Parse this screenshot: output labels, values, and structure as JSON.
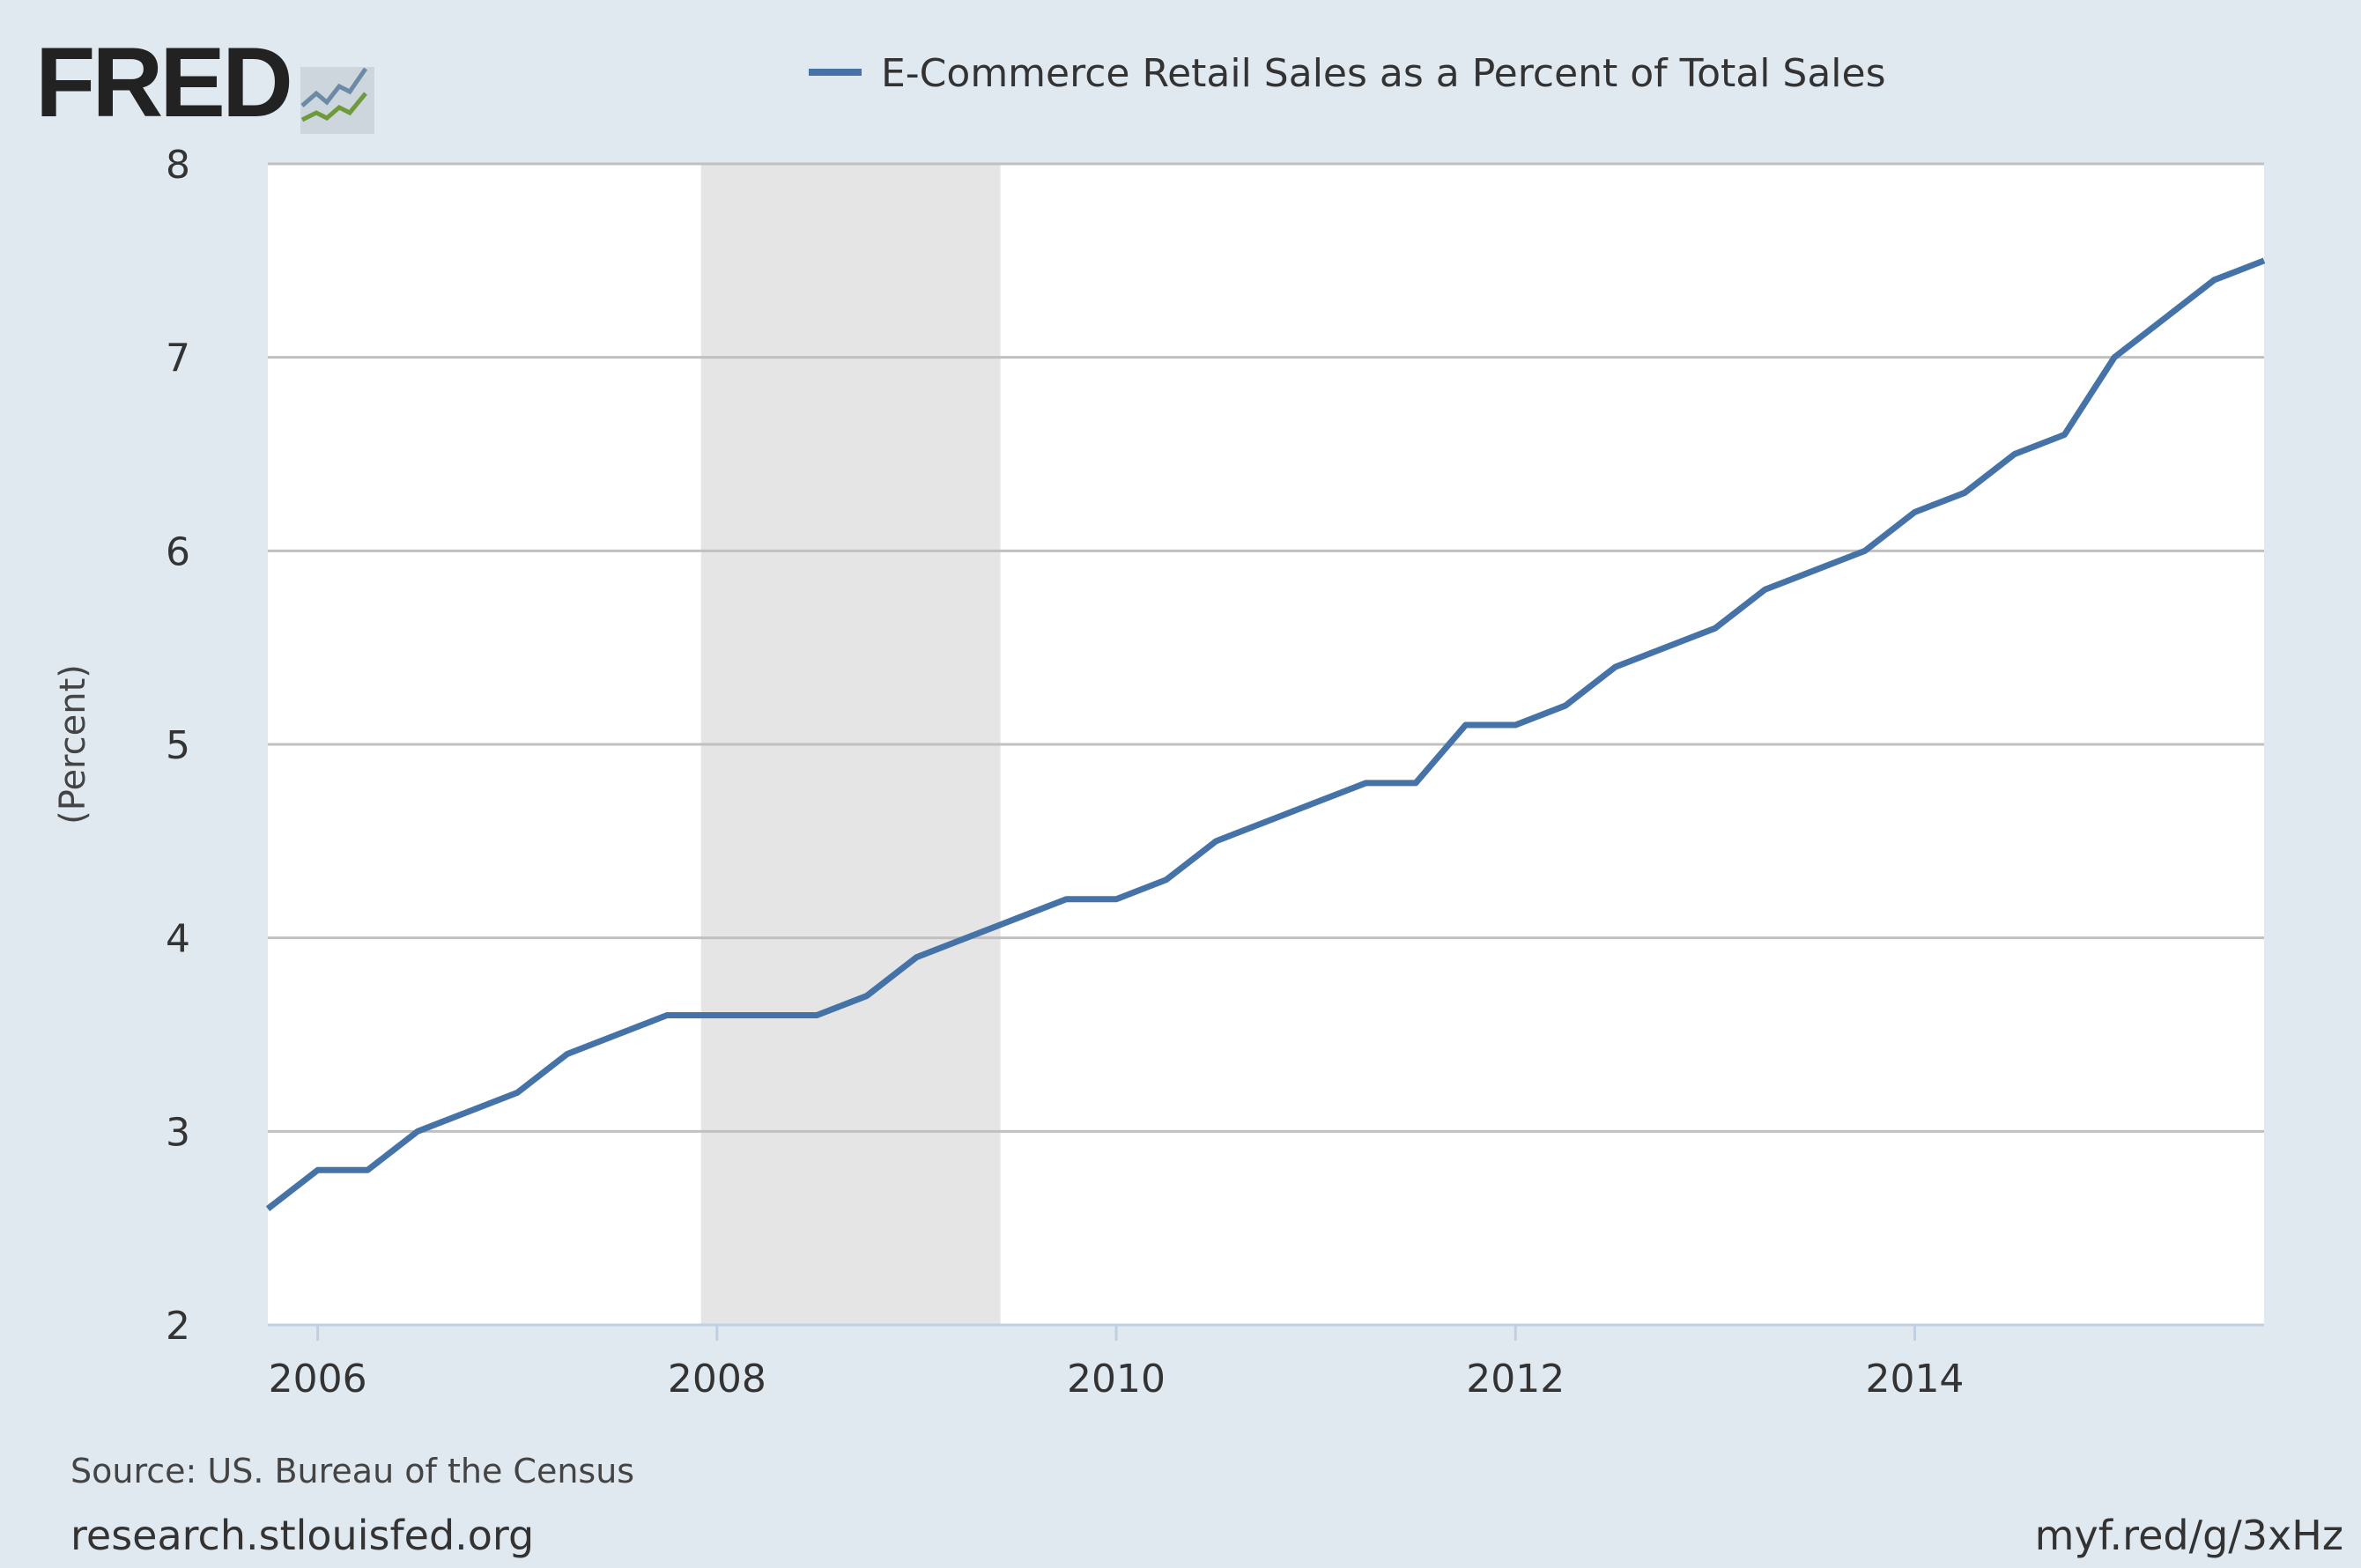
{
  "logo": {
    "text": "FRED"
  },
  "footer": {
    "source": "Source: US. Bureau of the Census",
    "site": "research.stlouisfed.org",
    "short_url": "myf.red/g/3xHz"
  },
  "colors": {
    "background": "#e1e9f0",
    "series": "#4572a7",
    "recession": "#e5e5e5",
    "grid": "#c0c0c0"
  },
  "chart_data": {
    "type": "line",
    "title": "",
    "legend": [
      "E-Commerce Retail Sales as a Percent of Total Sales"
    ],
    "legend_position": "top-center",
    "xlabel": "",
    "ylabel": "(Percent)",
    "ylim": [
      2,
      8
    ],
    "xlim": [
      2005.75,
      2015.75
    ],
    "yticks": [
      2,
      3,
      4,
      5,
      6,
      7,
      8
    ],
    "xticks": [
      2006,
      2008,
      2010,
      2012,
      2014
    ],
    "xtick_labels": [
      "2006",
      "2008",
      "2010",
      "2012",
      "2014"
    ],
    "grid": true,
    "recessions": [
      [
        2007.92,
        2009.42
      ]
    ],
    "series": [
      {
        "name": "E-Commerce Retail Sales as a Percent of Total Sales",
        "x": [
          "2005-Q4",
          "2006-Q1",
          "2006-Q2",
          "2006-Q3",
          "2006-Q4",
          "2007-Q1",
          "2007-Q2",
          "2007-Q3",
          "2007-Q4",
          "2008-Q1",
          "2008-Q2",
          "2008-Q3",
          "2008-Q4",
          "2009-Q1",
          "2009-Q2",
          "2009-Q3",
          "2009-Q4",
          "2010-Q1",
          "2010-Q2",
          "2010-Q3",
          "2010-Q4",
          "2011-Q1",
          "2011-Q2",
          "2011-Q3",
          "2011-Q4",
          "2012-Q1",
          "2012-Q2",
          "2012-Q3",
          "2012-Q4",
          "2013-Q1",
          "2013-Q2",
          "2013-Q3",
          "2013-Q4",
          "2014-Q1",
          "2014-Q2",
          "2014-Q3",
          "2014-Q4",
          "2015-Q1",
          "2015-Q2",
          "2015-Q3",
          "2015-Q4"
        ],
        "values": [
          2.6,
          2.8,
          2.8,
          3.0,
          3.1,
          3.2,
          3.4,
          3.5,
          3.6,
          3.6,
          3.6,
          3.6,
          3.7,
          3.9,
          4.0,
          4.1,
          4.2,
          4.2,
          4.3,
          4.5,
          4.6,
          4.7,
          4.8,
          4.8,
          5.1,
          5.1,
          5.2,
          5.4,
          5.5,
          5.6,
          5.8,
          5.9,
          6.0,
          6.2,
          6.3,
          6.5,
          6.6,
          7.0,
          7.2,
          7.4,
          7.5
        ]
      }
    ]
  }
}
